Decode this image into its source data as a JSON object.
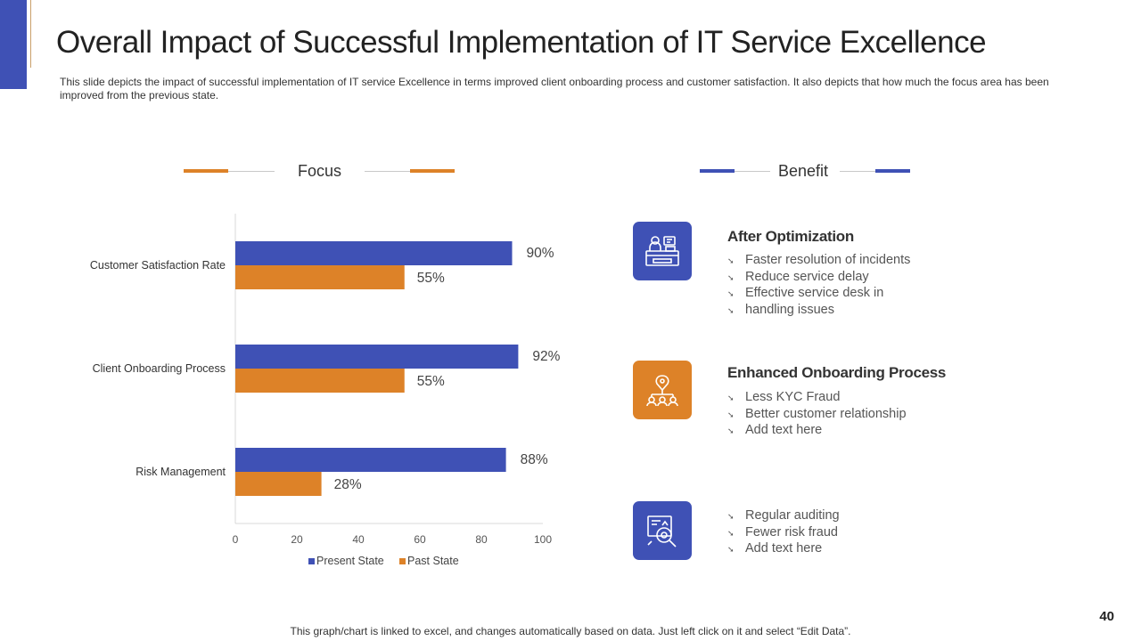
{
  "slide": {
    "title": "Overall Impact of Successful Implementation of IT Service Excellence",
    "subtitle": "This slide depicts the impact of successful implementation of  IT service  Excellence in terms improved  client onboarding  process and customer satisfaction.  It also depicts that how much the focus area has been improved  from the previous  state.",
    "focus_label": "Focus",
    "benefit_label": "Benefit",
    "footnote": "This graph/chart is linked to excel, and changes automatically based on data. Just left click on it and select “Edit Data”.",
    "page_number": "40"
  },
  "colors": {
    "present": "#3f51b5",
    "past": "#dd8228",
    "accent": "#3f51b5"
  },
  "benefits": [
    {
      "title": "After Optimization",
      "icon": "service-desk-icon",
      "color": "#3f51b5",
      "items": [
        "Faster resolution of incidents",
        "Reduce service delay",
        "Effective service desk in",
        "handling issues"
      ]
    },
    {
      "title": "Enhanced Onboarding Process",
      "icon": "team-network-icon",
      "color": "#dd8228",
      "items": [
        "Less KYC Fraud",
        "Better customer relationship",
        "Add text here"
      ]
    },
    {
      "title": "",
      "icon": "risk-audit-icon",
      "color": "#3f51b5",
      "items": [
        "Regular auditing",
        "Fewer risk fraud",
        "Add text here"
      ]
    }
  ],
  "chart_data": {
    "type": "bar",
    "orientation": "horizontal",
    "categories": [
      "Customer Satisfaction Rate",
      "Client Onboarding Process",
      "Risk Management"
    ],
    "series": [
      {
        "name": "Present State",
        "values": [
          90,
          92,
          88
        ],
        "labels": [
          "90%",
          "92%",
          "88%"
        ]
      },
      {
        "name": "Past State",
        "values": [
          55,
          55,
          28
        ],
        "labels": [
          "55%",
          "55%",
          "28%"
        ]
      }
    ],
    "xlim": [
      0,
      100
    ],
    "xticks": [
      0,
      20,
      40,
      60,
      80,
      100
    ],
    "legend": "bottom",
    "title": "",
    "xlabel": "",
    "ylabel": ""
  }
}
